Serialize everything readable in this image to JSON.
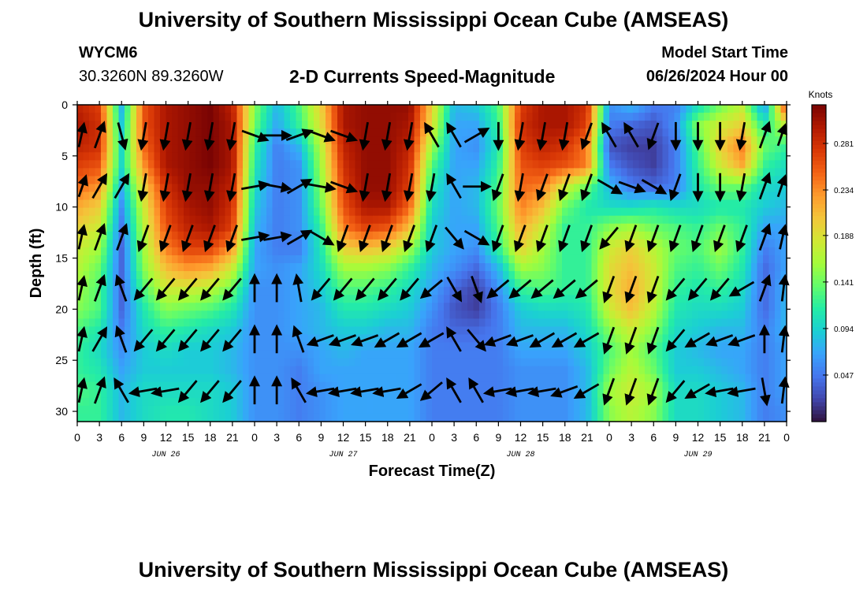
{
  "header": {
    "title": "University of Southern Mississippi Ocean Cube (AMSEAS)",
    "station_id": "WYCM6",
    "coords": "30.3260N  89.3260W",
    "chart_title": "2-D Currents Speed-Magnitude",
    "model_start_label": "Model Start Time",
    "model_start_value": "06/26/2024 Hour 00"
  },
  "footer": {
    "title": "University of Southern Mississippi Ocean Cube (AMSEAS)"
  },
  "chart_data": {
    "type": "heatmap",
    "title": "2-D Currents Speed-Magnitude",
    "xlabel": "Forecast Time(Z)",
    "ylabel": "Depth (ft)",
    "x_tick_labels": [
      "0",
      "3",
      "6",
      "9",
      "12",
      "15",
      "18",
      "21",
      "0",
      "3",
      "6",
      "9",
      "12",
      "15",
      "18",
      "21",
      "0",
      "3",
      "6",
      "9",
      "12",
      "15",
      "18",
      "21",
      "0",
      "3",
      "6",
      "9",
      "12",
      "15",
      "18",
      "21",
      "0"
    ],
    "date_labels": [
      {
        "label": "JUN 26",
        "tick_index": 4
      },
      {
        "label": "JUN 27",
        "tick_index": 12
      },
      {
        "label": "JUN 28",
        "tick_index": 20
      },
      {
        "label": "JUN 29",
        "tick_index": 28
      }
    ],
    "x_range_hours": [
      0,
      96
    ],
    "y_ticks": [
      0,
      5,
      10,
      15,
      20,
      25,
      30
    ],
    "y_range_ft": [
      0,
      31
    ],
    "y_inverted": true,
    "colorbar": {
      "units": "Knots",
      "tick_labels": [
        "0.281",
        "0.234",
        "0.188",
        "0.141",
        "0.094",
        "0.047"
      ],
      "range": [
        0,
        0.32
      ],
      "colormap": [
        "#30123b",
        "#4145ab",
        "#4675ed",
        "#39a2fc",
        "#1bcfd4",
        "#24eca6",
        "#61fc6c",
        "#a4fc3b",
        "#d1e834",
        "#f3c63a",
        "#fe9b2d",
        "#f36315",
        "#d93806",
        "#b11901",
        "#7a0403"
      ]
    },
    "speed_grid_knots": {
      "depths_ft": [
        0,
        2,
        4,
        6,
        8,
        10,
        12,
        14,
        16,
        18,
        20,
        22,
        24,
        26,
        28,
        30
      ],
      "hours": [
        0,
        3,
        6,
        9,
        12,
        15,
        18,
        21,
        24,
        27,
        30,
        33,
        36,
        39,
        42,
        45,
        48,
        51,
        54,
        57,
        60,
        63,
        66,
        69,
        72,
        75,
        78,
        81,
        84,
        87,
        90,
        93,
        96
      ],
      "values": [
        [
          0.29,
          0.27,
          0.08,
          0.26,
          0.3,
          0.31,
          0.32,
          0.29,
          0.15,
          0.08,
          0.13,
          0.2,
          0.3,
          0.31,
          0.31,
          0.31,
          0.2,
          0.08,
          0.09,
          0.13,
          0.27,
          0.3,
          0.3,
          0.28,
          0.06,
          0.08,
          0.05,
          0.05,
          0.1,
          0.14,
          0.17,
          0.06,
          0.28
        ],
        [
          0.3,
          0.28,
          0.09,
          0.26,
          0.3,
          0.31,
          0.32,
          0.3,
          0.14,
          0.07,
          0.12,
          0.19,
          0.3,
          0.31,
          0.31,
          0.3,
          0.19,
          0.07,
          0.07,
          0.12,
          0.28,
          0.3,
          0.3,
          0.27,
          0.05,
          0.04,
          0.03,
          0.06,
          0.15,
          0.18,
          0.2,
          0.11,
          0.18
        ],
        [
          0.29,
          0.28,
          0.1,
          0.25,
          0.3,
          0.31,
          0.32,
          0.3,
          0.12,
          0.05,
          0.08,
          0.17,
          0.29,
          0.31,
          0.31,
          0.29,
          0.16,
          0.07,
          0.06,
          0.11,
          0.27,
          0.29,
          0.28,
          0.24,
          0.03,
          0.02,
          0.02,
          0.05,
          0.13,
          0.2,
          0.24,
          0.14,
          0.12
        ],
        [
          0.27,
          0.26,
          0.1,
          0.23,
          0.3,
          0.31,
          0.32,
          0.3,
          0.11,
          0.05,
          0.06,
          0.16,
          0.28,
          0.31,
          0.31,
          0.28,
          0.13,
          0.07,
          0.07,
          0.12,
          0.26,
          0.27,
          0.26,
          0.24,
          0.05,
          0.03,
          0.02,
          0.05,
          0.12,
          0.18,
          0.22,
          0.12,
          0.1
        ],
        [
          0.25,
          0.23,
          0.08,
          0.2,
          0.28,
          0.31,
          0.31,
          0.29,
          0.1,
          0.05,
          0.06,
          0.15,
          0.27,
          0.31,
          0.31,
          0.27,
          0.11,
          0.07,
          0.08,
          0.13,
          0.25,
          0.24,
          0.18,
          0.14,
          0.08,
          0.05,
          0.04,
          0.05,
          0.11,
          0.14,
          0.14,
          0.1,
          0.09
        ],
        [
          0.22,
          0.2,
          0.06,
          0.18,
          0.27,
          0.3,
          0.31,
          0.28,
          0.09,
          0.05,
          0.06,
          0.14,
          0.26,
          0.3,
          0.3,
          0.25,
          0.1,
          0.07,
          0.08,
          0.14,
          0.24,
          0.21,
          0.14,
          0.11,
          0.1,
          0.1,
          0.11,
          0.1,
          0.1,
          0.11,
          0.11,
          0.09,
          0.08
        ],
        [
          0.2,
          0.18,
          0.05,
          0.17,
          0.26,
          0.29,
          0.3,
          0.27,
          0.08,
          0.05,
          0.06,
          0.12,
          0.24,
          0.27,
          0.26,
          0.21,
          0.09,
          0.07,
          0.07,
          0.13,
          0.22,
          0.18,
          0.12,
          0.12,
          0.15,
          0.16,
          0.14,
          0.13,
          0.12,
          0.14,
          0.12,
          0.07,
          0.07
        ],
        [
          0.18,
          0.16,
          0.04,
          0.16,
          0.24,
          0.27,
          0.27,
          0.23,
          0.07,
          0.05,
          0.05,
          0.11,
          0.2,
          0.21,
          0.2,
          0.16,
          0.09,
          0.07,
          0.06,
          0.12,
          0.2,
          0.16,
          0.12,
          0.12,
          0.18,
          0.2,
          0.17,
          0.14,
          0.13,
          0.16,
          0.12,
          0.05,
          0.07
        ],
        [
          0.17,
          0.14,
          0.04,
          0.15,
          0.21,
          0.23,
          0.22,
          0.18,
          0.07,
          0.06,
          0.07,
          0.1,
          0.16,
          0.16,
          0.15,
          0.12,
          0.08,
          0.06,
          0.04,
          0.08,
          0.16,
          0.15,
          0.12,
          0.12,
          0.19,
          0.21,
          0.18,
          0.13,
          0.12,
          0.14,
          0.11,
          0.04,
          0.07
        ],
        [
          0.16,
          0.13,
          0.04,
          0.13,
          0.18,
          0.18,
          0.17,
          0.14,
          0.06,
          0.06,
          0.07,
          0.09,
          0.13,
          0.13,
          0.12,
          0.1,
          0.07,
          0.04,
          0.02,
          0.06,
          0.12,
          0.13,
          0.12,
          0.12,
          0.19,
          0.22,
          0.18,
          0.12,
          0.11,
          0.12,
          0.1,
          0.04,
          0.08
        ],
        [
          0.15,
          0.13,
          0.04,
          0.11,
          0.15,
          0.14,
          0.13,
          0.11,
          0.06,
          0.06,
          0.07,
          0.08,
          0.11,
          0.11,
          0.1,
          0.09,
          0.06,
          0.03,
          0.02,
          0.05,
          0.09,
          0.1,
          0.1,
          0.11,
          0.18,
          0.21,
          0.17,
          0.11,
          0.1,
          0.1,
          0.09,
          0.04,
          0.08
        ],
        [
          0.13,
          0.11,
          0.05,
          0.1,
          0.12,
          0.11,
          0.1,
          0.09,
          0.06,
          0.06,
          0.07,
          0.08,
          0.09,
          0.09,
          0.08,
          0.08,
          0.05,
          0.04,
          0.04,
          0.05,
          0.08,
          0.08,
          0.08,
          0.1,
          0.15,
          0.18,
          0.15,
          0.1,
          0.09,
          0.08,
          0.08,
          0.05,
          0.08
        ],
        [
          0.12,
          0.1,
          0.06,
          0.09,
          0.1,
          0.09,
          0.09,
          0.08,
          0.06,
          0.06,
          0.06,
          0.07,
          0.08,
          0.07,
          0.07,
          0.07,
          0.05,
          0.05,
          0.05,
          0.05,
          0.07,
          0.07,
          0.07,
          0.09,
          0.13,
          0.16,
          0.13,
          0.09,
          0.08,
          0.07,
          0.07,
          0.05,
          0.07
        ],
        [
          0.12,
          0.11,
          0.07,
          0.09,
          0.09,
          0.09,
          0.09,
          0.08,
          0.06,
          0.06,
          0.05,
          0.07,
          0.07,
          0.07,
          0.07,
          0.07,
          0.05,
          0.05,
          0.05,
          0.05,
          0.06,
          0.06,
          0.06,
          0.08,
          0.14,
          0.17,
          0.14,
          0.09,
          0.09,
          0.08,
          0.07,
          0.05,
          0.07
        ],
        [
          0.13,
          0.12,
          0.08,
          0.1,
          0.1,
          0.1,
          0.1,
          0.09,
          0.06,
          0.06,
          0.05,
          0.06,
          0.07,
          0.07,
          0.07,
          0.07,
          0.05,
          0.05,
          0.05,
          0.05,
          0.06,
          0.06,
          0.06,
          0.08,
          0.16,
          0.18,
          0.16,
          0.1,
          0.1,
          0.09,
          0.08,
          0.05,
          0.07
        ],
        [
          0.12,
          0.12,
          0.08,
          0.1,
          0.11,
          0.11,
          0.1,
          0.09,
          0.06,
          0.06,
          0.05,
          0.06,
          0.07,
          0.07,
          0.07,
          0.07,
          0.05,
          0.05,
          0.05,
          0.05,
          0.06,
          0.06,
          0.06,
          0.08,
          0.15,
          0.17,
          0.15,
          0.1,
          0.1,
          0.09,
          0.08,
          0.05,
          0.06
        ]
      ]
    },
    "current_vectors": {
      "hours": [
        0,
        3,
        6,
        9,
        12,
        15,
        18,
        21,
        24,
        27,
        30,
        33,
        36,
        39,
        42,
        45,
        48,
        51,
        54,
        57,
        60,
        63,
        66,
        69,
        72,
        75,
        78,
        81,
        84,
        87,
        90,
        93,
        96
      ],
      "depths_ft": [
        3,
        8,
        13,
        18,
        23,
        28
      ],
      "direction_deg": [
        [
          30,
          20,
          165,
          190,
          190,
          190,
          190,
          190,
          110,
          90,
          70,
          110,
          110,
          190,
          190,
          190,
          330,
          330,
          60,
          180,
          190,
          190,
          190,
          200,
          330,
          330,
          200,
          180,
          180,
          180,
          190,
          20,
          40
        ],
        [
          40,
          30,
          30,
          190,
          190,
          190,
          190,
          190,
          80,
          100,
          60,
          100,
          110,
          190,
          190,
          190,
          190,
          330,
          90,
          200,
          190,
          200,
          200,
          200,
          120,
          110,
          120,
          200,
          180,
          180,
          190,
          20,
          40
        ],
        [
          30,
          20,
          20,
          200,
          200,
          200,
          200,
          200,
          80,
          80,
          60,
          120,
          200,
          200,
          200,
          200,
          200,
          140,
          120,
          200,
          200,
          200,
          200,
          200,
          220,
          200,
          200,
          200,
          200,
          200,
          200,
          20,
          30
        ],
        [
          30,
          20,
          340,
          220,
          220,
          220,
          220,
          220,
          0,
          0,
          350,
          220,
          220,
          220,
          220,
          220,
          230,
          150,
          160,
          230,
          230,
          230,
          230,
          230,
          200,
          200,
          200,
          220,
          220,
          220,
          240,
          20,
          20
        ],
        [
          30,
          30,
          340,
          220,
          220,
          220,
          220,
          220,
          0,
          0,
          340,
          250,
          250,
          250,
          240,
          240,
          240,
          330,
          140,
          250,
          250,
          240,
          240,
          240,
          200,
          200,
          200,
          220,
          240,
          250,
          250,
          0,
          20
        ],
        [
          30,
          20,
          330,
          260,
          260,
          220,
          220,
          220,
          0,
          0,
          330,
          260,
          260,
          260,
          260,
          240,
          230,
          330,
          330,
          260,
          260,
          260,
          250,
          240,
          200,
          200,
          200,
          220,
          240,
          260,
          260,
          170,
          20
        ]
      ],
      "arrow_length_px": 34
    }
  }
}
